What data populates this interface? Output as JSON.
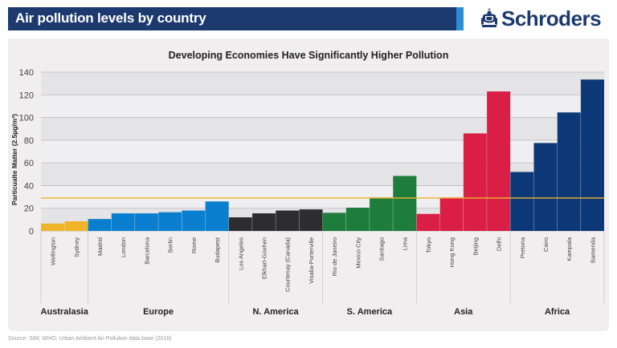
{
  "header": {
    "title": "Air pollution levels by country",
    "brand": "Schroders",
    "brand_icon": "crest-icon"
  },
  "colors": {
    "header_bg": "#1d3a6e",
    "header_accent": "#2b8fd6",
    "threshold_line": "#f0b429"
  },
  "source": "Source: SIM; WHO; Urban Ambient Air Pollution data base (2016)",
  "chart_data": {
    "type": "bar",
    "title": "Developing Economies Have Significantly Higher Pollution",
    "xlabel": "",
    "ylabel": "Particualte Matter (2.5µg/m³)",
    "ylim": [
      0,
      140
    ],
    "yticks": [
      0,
      20,
      40,
      60,
      80,
      100,
      120,
      140
    ],
    "grid": true,
    "reference_line": {
      "value": 29,
      "color": "#f0b429"
    },
    "groups": [
      {
        "name": "Australasia",
        "color": "#f0b429",
        "categories": [
          "Wellington",
          "Sydney"
        ],
        "values": [
          6.5,
          8.5
        ]
      },
      {
        "name": "Europe",
        "color": "#0a7fcf",
        "categories": [
          "Madrid",
          "London",
          "Barcelona",
          "Berlin",
          "Rome",
          "Budapest"
        ],
        "values": [
          10.5,
          15.5,
          15.5,
          16.5,
          18,
          26
        ]
      },
      {
        "name": "N. America",
        "color": "#2d2d30",
        "categories": [
          "Los Angeles",
          "Elkhart-Goshen",
          "Courtenay (Canada)",
          "Visalia-Porterville"
        ],
        "values": [
          12,
          15.5,
          18,
          19
        ]
      },
      {
        "name": "S. America",
        "color": "#1e7d3c",
        "categories": [
          "Rio de Janeiro",
          "Mexico City",
          "Santiago",
          "Lima"
        ],
        "values": [
          16,
          20.5,
          29.5,
          48.5
        ]
      },
      {
        "name": "Asia",
        "color": "#d91f45",
        "categories": [
          "Tokyo",
          "Hong Kong",
          "Beijing",
          "Delhi"
        ],
        "values": [
          15,
          29.5,
          86,
          123
        ]
      },
      {
        "name": "Africa",
        "color": "#0d3877",
        "categories": [
          "Pretoria",
          "Cairo",
          "Kampala",
          "Bamenda"
        ],
        "values": [
          52,
          77.5,
          104.5,
          133.5
        ]
      }
    ]
  }
}
